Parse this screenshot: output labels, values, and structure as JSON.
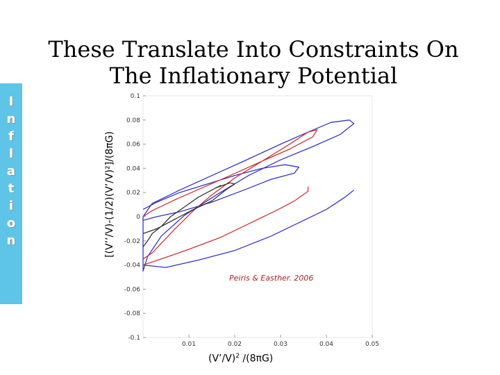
{
  "sidebar": {
    "letters": [
      "I",
      "n",
      "f",
      "l",
      "a",
      "t",
      "i",
      "o",
      "n"
    ],
    "color": "#5ec4e8"
  },
  "title": {
    "line1": "These Translate Into Constraints On",
    "line2": "The Inflationary Potential"
  },
  "chart_data": {
    "type": "contour",
    "xlabel_base": "(V’/V)",
    "xlabel_sup": "2",
    "xlabel_tail": " /(8πG)",
    "ylabel": "[(V’’/V)-(1/2)(V’/V)²]/(8πG)",
    "xlim": [
      0,
      0.05
    ],
    "ylim": [
      -0.1,
      0.1
    ],
    "xticks": [
      0.01,
      0.02,
      0.03,
      0.04,
      0.05
    ],
    "xtick_labels": [
      "0.01",
      "0.02",
      "0.03",
      "0.04",
      "0.05"
    ],
    "yticks": [
      -0.1,
      -0.08,
      -0.06,
      -0.04,
      -0.02,
      0,
      0.02,
      0.04,
      0.06,
      0.08,
      0.1
    ],
    "ytick_labels": [
      "-0.1",
      "-0.08",
      "-0.06",
      "-0.04",
      "-0.02",
      "0",
      "0.02",
      "0.04",
      "0.06",
      "0.08",
      "0.1"
    ],
    "annotation": "Peiris & Easther. 2006",
    "annotation_color": "#aa2222",
    "series": [
      {
        "color": "#3333cc",
        "contours": [
          [
            [
              0,
              0.0
            ],
            [
              0.002,
              0.011
            ],
            [
              0.008,
              0.022
            ],
            [
              0.015,
              0.034
            ],
            [
              0.022,
              0.046
            ],
            [
              0.03,
              0.06
            ],
            [
              0.036,
              0.07
            ],
            [
              0.041,
              0.078
            ],
            [
              0.045,
              0.08
            ],
            [
              0.046,
              0.077
            ],
            [
              0.043,
              0.068
            ],
            [
              0.037,
              0.058
            ],
            [
              0.03,
              0.047
            ],
            [
              0.023,
              0.034
            ],
            [
              0.016,
              0.018
            ],
            [
              0.009,
              0.001
            ],
            [
              0.004,
              -0.016
            ],
            [
              0.001,
              -0.033
            ],
            [
              0,
              -0.045
            ],
            [
              0,
              0
            ]
          ],
          [
            [
              0,
              -0.003
            ],
            [
              0.003,
              0.0
            ],
            [
              0.008,
              0.004
            ],
            [
              0.015,
              0.012
            ],
            [
              0.022,
              0.022
            ],
            [
              0.028,
              0.031
            ],
            [
              0.033,
              0.036
            ],
            [
              0.034,
              0.041
            ],
            [
              0.031,
              0.043
            ],
            [
              0.026,
              0.04
            ],
            [
              0.02,
              0.034
            ],
            [
              0.014,
              0.027
            ],
            [
              0.008,
              0.02
            ],
            [
              0.003,
              0.012
            ],
            [
              0,
              0.006
            ]
          ],
          [
            [
              0,
              -0.04
            ],
            [
              0.005,
              -0.042
            ],
            [
              0.012,
              -0.036
            ],
            [
              0.02,
              -0.028
            ],
            [
              0.028,
              -0.016
            ],
            [
              0.034,
              -0.005
            ],
            [
              0.04,
              0.006
            ],
            [
              0.044,
              0.016
            ],
            [
              0.046,
              0.022
            ]
          ]
        ]
      },
      {
        "color": "#cc3333",
        "contours": [
          [
            [
              0,
              0.0
            ],
            [
              0.002,
              0.005
            ],
            [
              0.007,
              0.014
            ],
            [
              0.013,
              0.024
            ],
            [
              0.019,
              0.034
            ],
            [
              0.026,
              0.046
            ],
            [
              0.032,
              0.06
            ],
            [
              0.036,
              0.07
            ],
            [
              0.038,
              0.072
            ],
            [
              0.037,
              0.066
            ],
            [
              0.032,
              0.056
            ],
            [
              0.026,
              0.046
            ],
            [
              0.02,
              0.032
            ],
            [
              0.015,
              0.018
            ],
            [
              0.011,
              0.005
            ],
            [
              0.007,
              -0.01
            ],
            [
              0.004,
              -0.022
            ],
            [
              0.002,
              -0.03
            ],
            [
              0,
              -0.035
            ]
          ],
          [
            [
              0,
              -0.04
            ],
            [
              0.004,
              -0.035
            ],
            [
              0.01,
              -0.027
            ],
            [
              0.017,
              -0.017
            ],
            [
              0.023,
              -0.006
            ],
            [
              0.029,
              0.005
            ],
            [
              0.033,
              0.013
            ],
            [
              0.036,
              0.021
            ],
            [
              0.036,
              0.025
            ]
          ]
        ]
      },
      {
        "color": "#333333",
        "contours": [
          [
            [
              0,
              -0.014
            ],
            [
              0.003,
              -0.01
            ],
            [
              0.007,
              -0.002
            ],
            [
              0.011,
              0.006
            ],
            [
              0.015,
              0.013
            ],
            [
              0.018,
              0.022
            ],
            [
              0.02,
              0.027
            ],
            [
              0.019,
              0.028
            ],
            [
              0.016,
              0.024
            ],
            [
              0.012,
              0.016
            ],
            [
              0.009,
              0.008
            ],
            [
              0.006,
              0.0
            ],
            [
              0.004,
              -0.008
            ],
            [
              0.002,
              -0.014
            ],
            [
              0.001,
              -0.02
            ],
            [
              0,
              -0.025
            ]
          ],
          [
            [
              0.016,
              0.024
            ],
            [
              0.017,
              0.026
            ]
          ]
        ]
      }
    ]
  }
}
